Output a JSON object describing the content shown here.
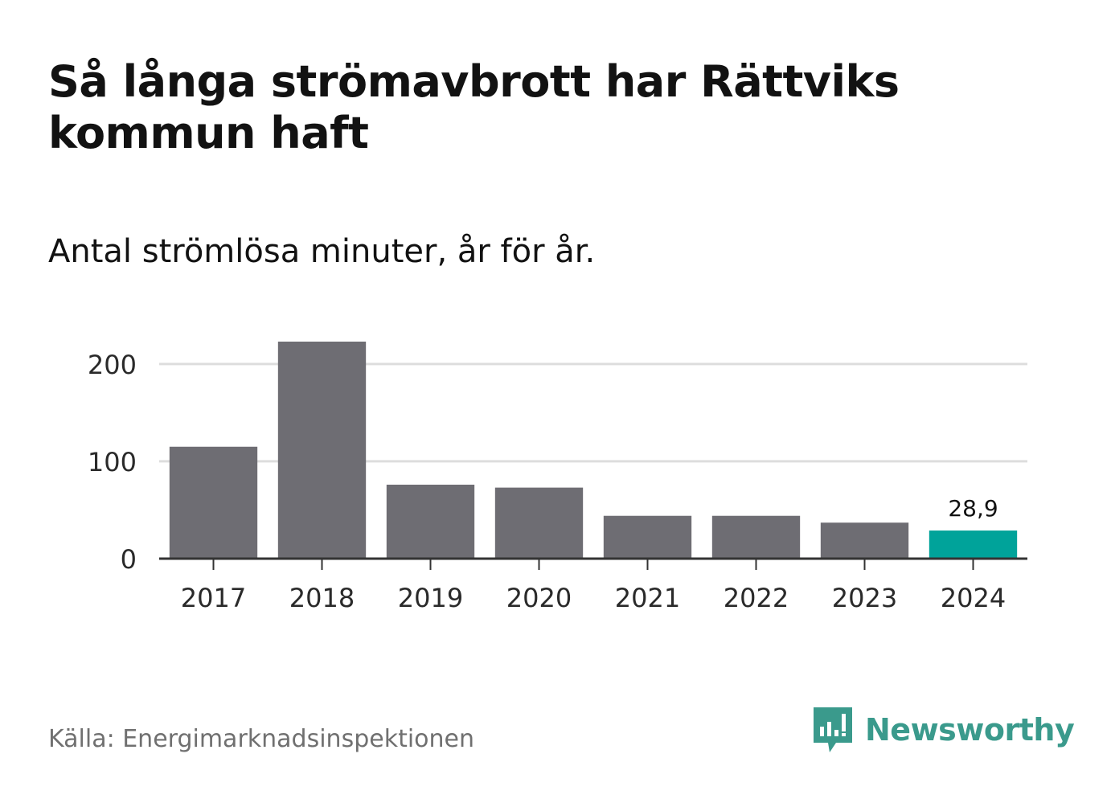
{
  "title": "Så långa strömavbrott har Rättviks kommun haft",
  "subtitle": "Antal strömlösa minuter, år för år.",
  "source": "Källa: Energimarknadsinspektionen",
  "brand": {
    "name": "Newsworthy",
    "icon": "newsworthy-logo-icon",
    "color": "#3a9a8c"
  },
  "colors": {
    "bar": "#6e6d73",
    "highlight": "#00a39a",
    "grid": "#dddddd",
    "axis": "#333333"
  },
  "chart_data": {
    "type": "bar",
    "categories": [
      "2017",
      "2018",
      "2019",
      "2020",
      "2021",
      "2022",
      "2023",
      "2024"
    ],
    "values": [
      115,
      223,
      76,
      73,
      44,
      44,
      37,
      28.9
    ],
    "highlight_index": 7,
    "data_labels": [
      {
        "index": 7,
        "text": "28,9"
      }
    ],
    "yticks": [
      0,
      100,
      200
    ],
    "ylim": [
      0,
      223
    ],
    "grid": true,
    "xlabel": "",
    "ylabel": ""
  }
}
